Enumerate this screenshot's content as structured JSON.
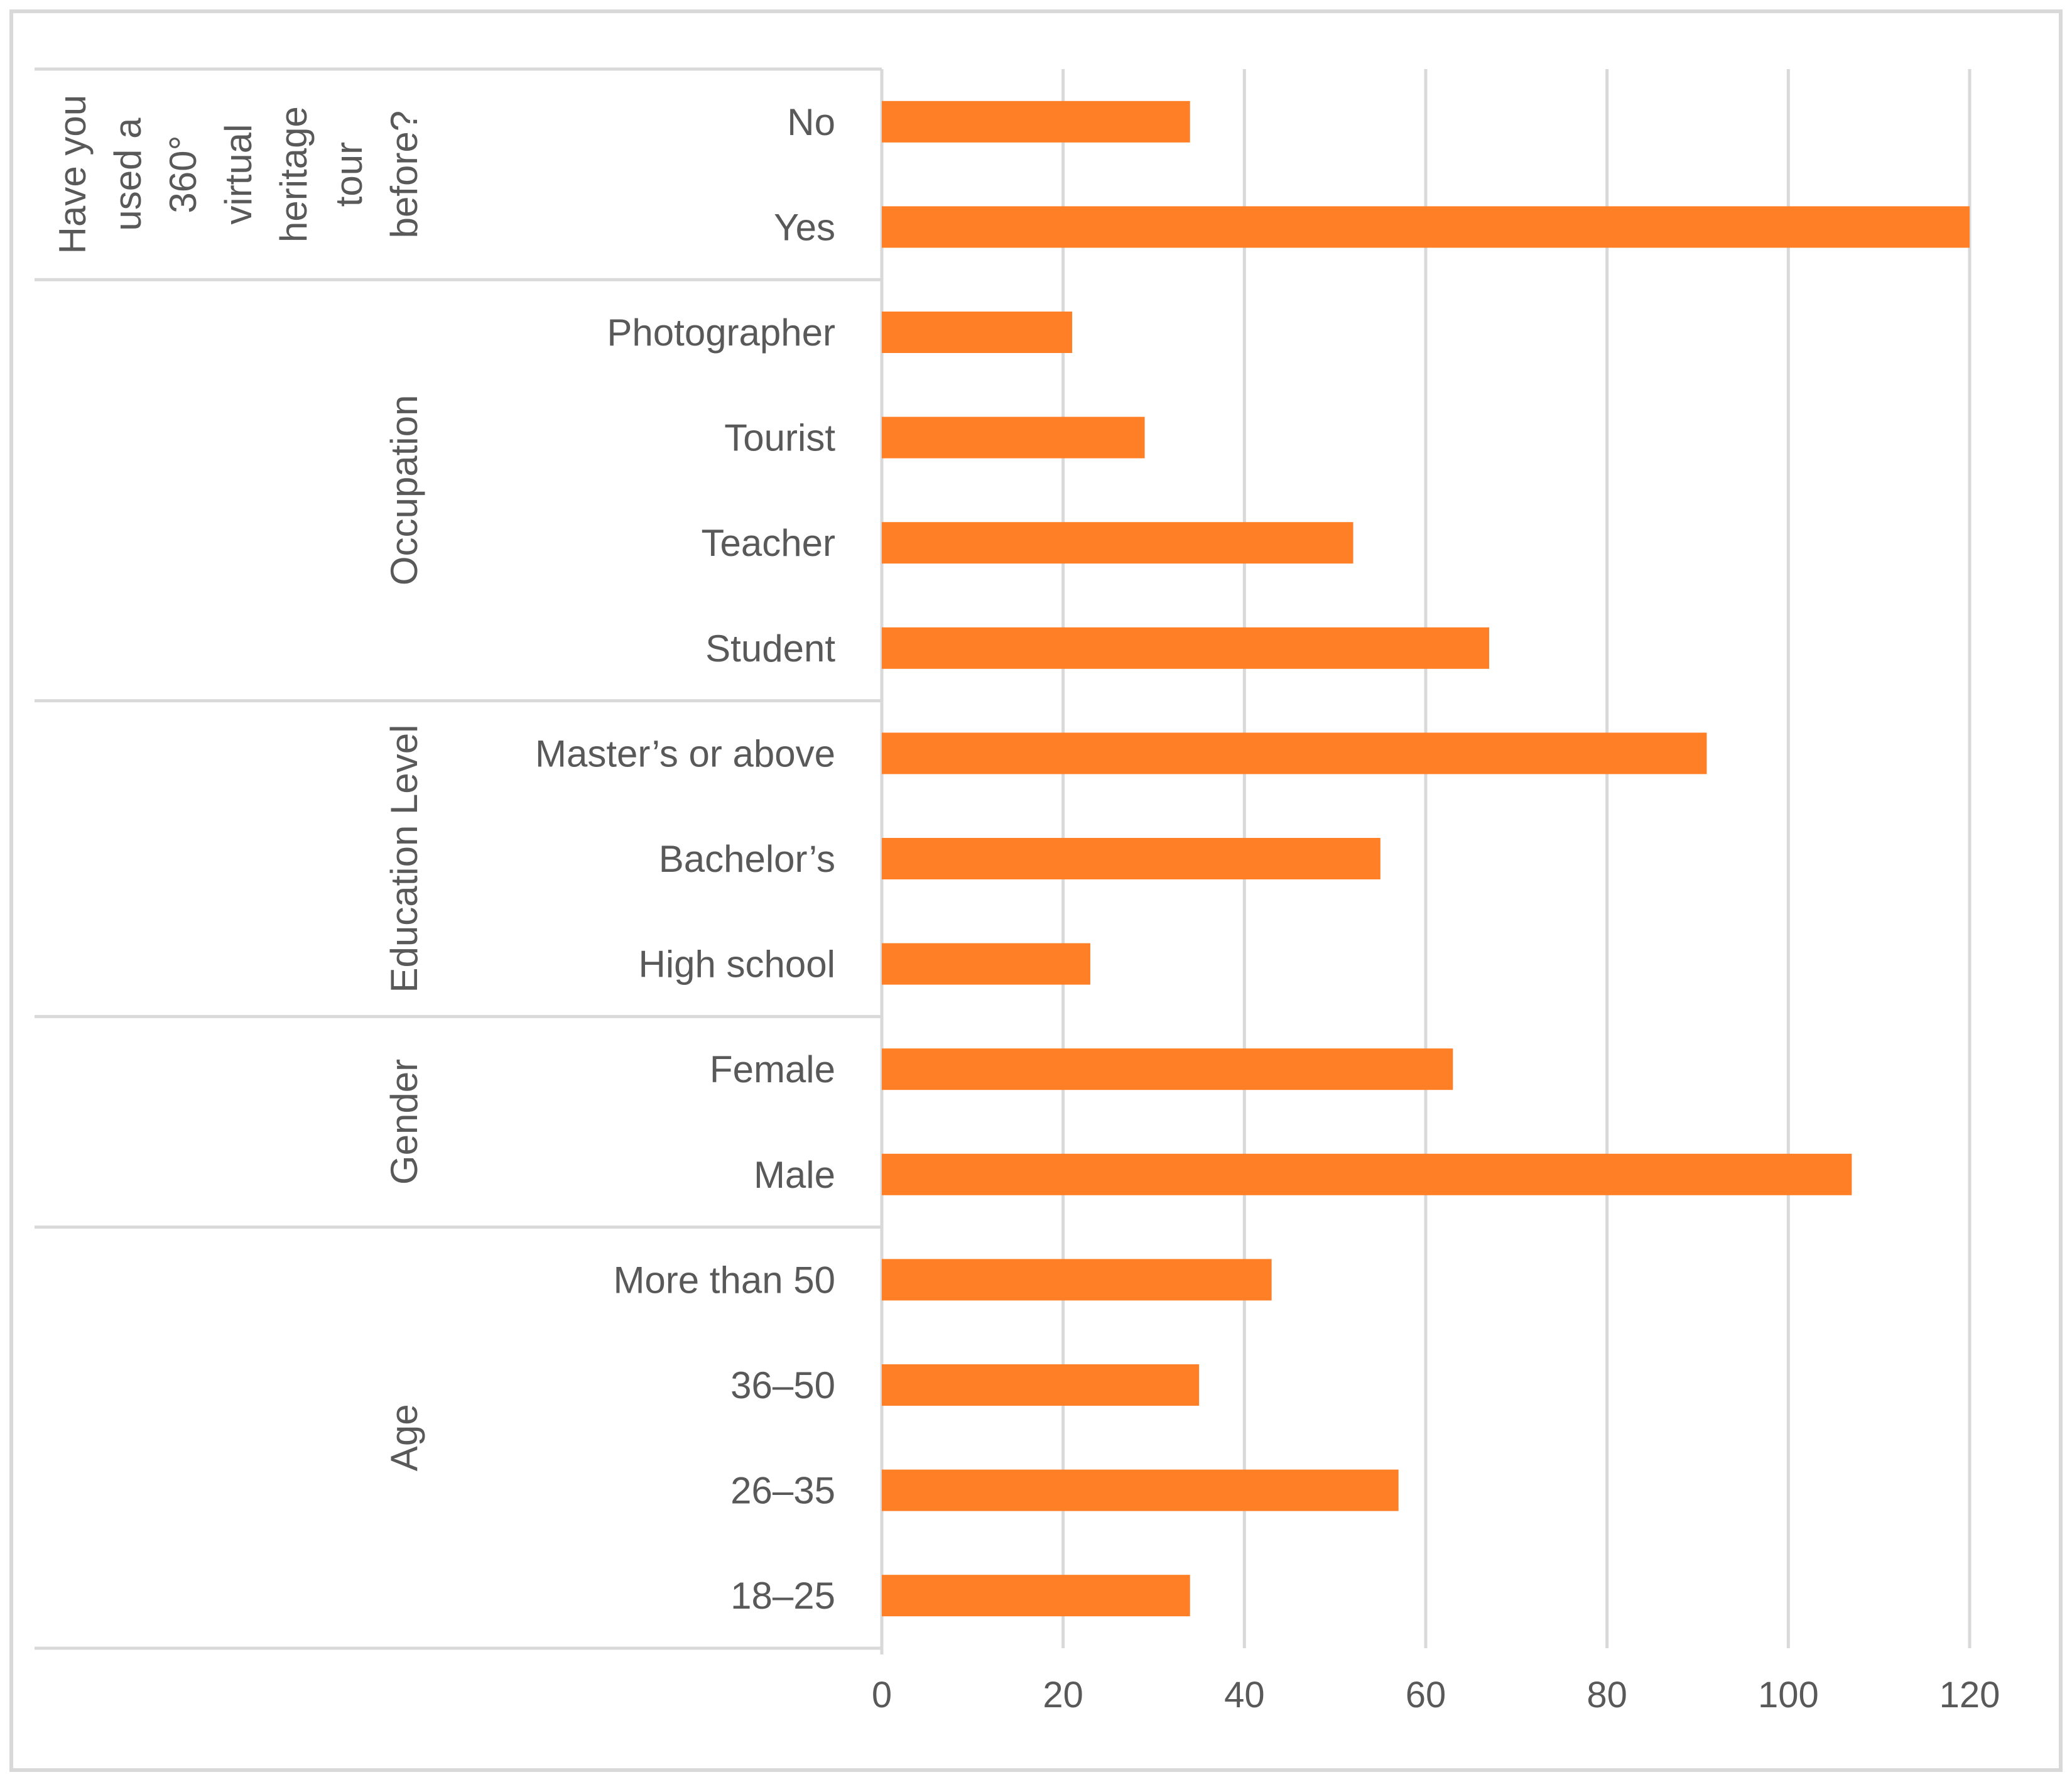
{
  "colors": {
    "bar": "#FF7F27",
    "gridline": "#D9D9D9",
    "divider": "#D9D9D9",
    "text": "#595959",
    "frame": "#D9D9D9"
  },
  "chart_data": {
    "type": "bar",
    "orientation": "horizontal",
    "grid": true,
    "legend": "none",
    "xlim": [
      0,
      120
    ],
    "x_ticks": [
      "0",
      "20",
      "40",
      "60",
      "80",
      "100",
      "120"
    ],
    "groups": [
      {
        "name_lines": [
          "Have you",
          "used a",
          "360°",
          "virtual",
          "heritage",
          "tour",
          "before?"
        ],
        "categories": [
          "No",
          "Yes"
        ],
        "values": [
          34,
          120
        ]
      },
      {
        "name_lines": [
          "Occupation"
        ],
        "categories": [
          "Photographer",
          "Tourist",
          "Teacher",
          "Student"
        ],
        "values": [
          21,
          29,
          52,
          67
        ]
      },
      {
        "name_lines": [
          "Education Level"
        ],
        "categories": [
          "Master’s or above",
          "Bachelor’s",
          "High school"
        ],
        "values": [
          91,
          55,
          23
        ]
      },
      {
        "name_lines": [
          "Gender"
        ],
        "categories": [
          "Female",
          "Male"
        ],
        "values": [
          63,
          107
        ]
      },
      {
        "name_lines": [
          "Age"
        ],
        "categories": [
          "More than 50",
          "36–50",
          "26–35",
          "18–25"
        ],
        "values": [
          43,
          35,
          57,
          34
        ]
      }
    ]
  }
}
